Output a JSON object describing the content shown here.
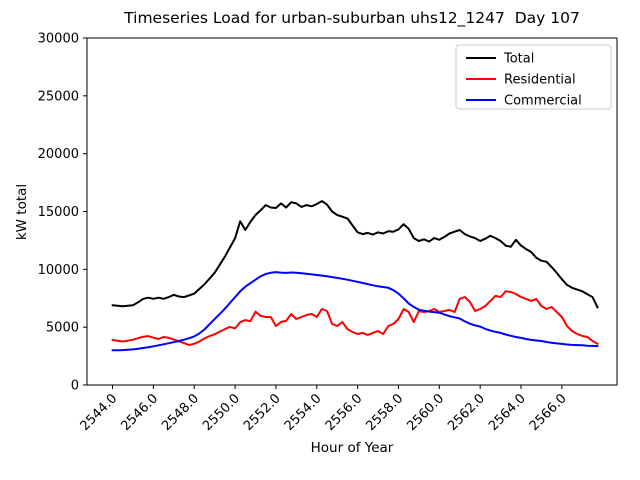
{
  "chart_data": {
    "type": "line",
    "title": "Timeseries Load for urban-suburban uhs12_1247  Day 107",
    "xlabel": "Hour of Year",
    "ylabel": "kW total",
    "xlim": [
      2542.75,
      2568.7
    ],
    "ylim": [
      0,
      30000
    ],
    "grid": false,
    "x_ticks": {
      "values": [
        2544,
        2546,
        2548,
        2550,
        2552,
        2554,
        2556,
        2558,
        2560,
        2562,
        2564,
        2566
      ],
      "labels": [
        "2544.0",
        "2546.0",
        "2548.0",
        "2550.0",
        "2552.0",
        "2554.0",
        "2556.0",
        "2558.0",
        "2560.0",
        "2562.0",
        "2564.0",
        "2566.0"
      ]
    },
    "y_ticks": {
      "values": [
        0,
        5000,
        10000,
        15000,
        20000,
        25000,
        30000
      ],
      "labels": [
        "0",
        "5000",
        "10000",
        "15000",
        "20000",
        "25000",
        "30000"
      ]
    },
    "x_start": 2544.0,
    "x_step": 0.25,
    "legend": {
      "position": "upper right",
      "entries": [
        {
          "label": "Total",
          "color": "#000000"
        },
        {
          "label": "Residential",
          "color": "#ff0000"
        },
        {
          "label": "Commercial",
          "color": "#0000ff"
        }
      ]
    },
    "series": [
      {
        "name": "Total",
        "color": "#000000",
        "values": [
          6900,
          6850,
          6800,
          6850,
          6900,
          7150,
          7450,
          7550,
          7450,
          7550,
          7450,
          7600,
          7800,
          7650,
          7600,
          7750,
          7900,
          8300,
          8700,
          9200,
          9700,
          10400,
          11100,
          11900,
          12700,
          14150,
          13400,
          14100,
          14700,
          15100,
          15550,
          15350,
          15300,
          15700,
          15350,
          15800,
          15700,
          15400,
          15550,
          15450,
          15650,
          15900,
          15600,
          15000,
          14700,
          14550,
          14400,
          13800,
          13200,
          13050,
          13150,
          13000,
          13200,
          13100,
          13300,
          13250,
          13450,
          13900,
          13500,
          12700,
          12450,
          12600,
          12400,
          12700,
          12550,
          12800,
          13100,
          13250,
          13400,
          13050,
          12850,
          12700,
          12450,
          12650,
          12900,
          12700,
          12450,
          12050,
          11950,
          12550,
          12050,
          11750,
          11500,
          11000,
          10750,
          10650,
          10200,
          9700,
          9150,
          8650,
          8400,
          8250,
          8100,
          7850,
          7600,
          6700
        ]
      },
      {
        "name": "Residential",
        "color": "#ff0000",
        "values": [
          3900,
          3830,
          3760,
          3830,
          3920,
          4050,
          4180,
          4230,
          4090,
          3980,
          4150,
          4080,
          3930,
          3780,
          3620,
          3460,
          3560,
          3760,
          4020,
          4230,
          4380,
          4620,
          4830,
          5020,
          4890,
          5430,
          5610,
          5520,
          6350,
          5970,
          5880,
          5880,
          5100,
          5450,
          5540,
          6140,
          5710,
          5880,
          6050,
          6140,
          5880,
          6570,
          6400,
          5280,
          5100,
          5450,
          4840,
          4580,
          4410,
          4500,
          4330,
          4500,
          4670,
          4410,
          5100,
          5280,
          5710,
          6570,
          6310,
          5450,
          6400,
          6310,
          6400,
          6570,
          6310,
          6400,
          6490,
          6310,
          7440,
          7610,
          7180,
          6400,
          6570,
          6830,
          7270,
          7700,
          7610,
          8100,
          8040,
          7870,
          7610,
          7440,
          7270,
          7440,
          6830,
          6570,
          6740,
          6310,
          5880,
          5100,
          4670,
          4410,
          4240,
          4150,
          3800,
          3550
        ]
      },
      {
        "name": "Commercial",
        "color": "#0000ff",
        "values": [
          3000,
          3010,
          3020,
          3040,
          3080,
          3130,
          3200,
          3270,
          3350,
          3430,
          3520,
          3610,
          3700,
          3800,
          3920,
          4050,
          4200,
          4450,
          4800,
          5250,
          5700,
          6150,
          6600,
          7100,
          7600,
          8100,
          8500,
          8800,
          9100,
          9400,
          9600,
          9700,
          9760,
          9720,
          9690,
          9730,
          9700,
          9660,
          9610,
          9560,
          9510,
          9460,
          9400,
          9330,
          9260,
          9180,
          9100,
          9010,
          8920,
          8820,
          8720,
          8620,
          8530,
          8470,
          8400,
          8200,
          7900,
          7500,
          7050,
          6750,
          6500,
          6420,
          6350,
          6300,
          6250,
          6100,
          5950,
          5850,
          5750,
          5500,
          5300,
          5150,
          5050,
          4850,
          4700,
          4600,
          4500,
          4370,
          4250,
          4150,
          4070,
          3980,
          3900,
          3850,
          3800,
          3720,
          3650,
          3600,
          3550,
          3500,
          3470,
          3450,
          3430,
          3400,
          3380,
          3360
        ]
      }
    ]
  }
}
